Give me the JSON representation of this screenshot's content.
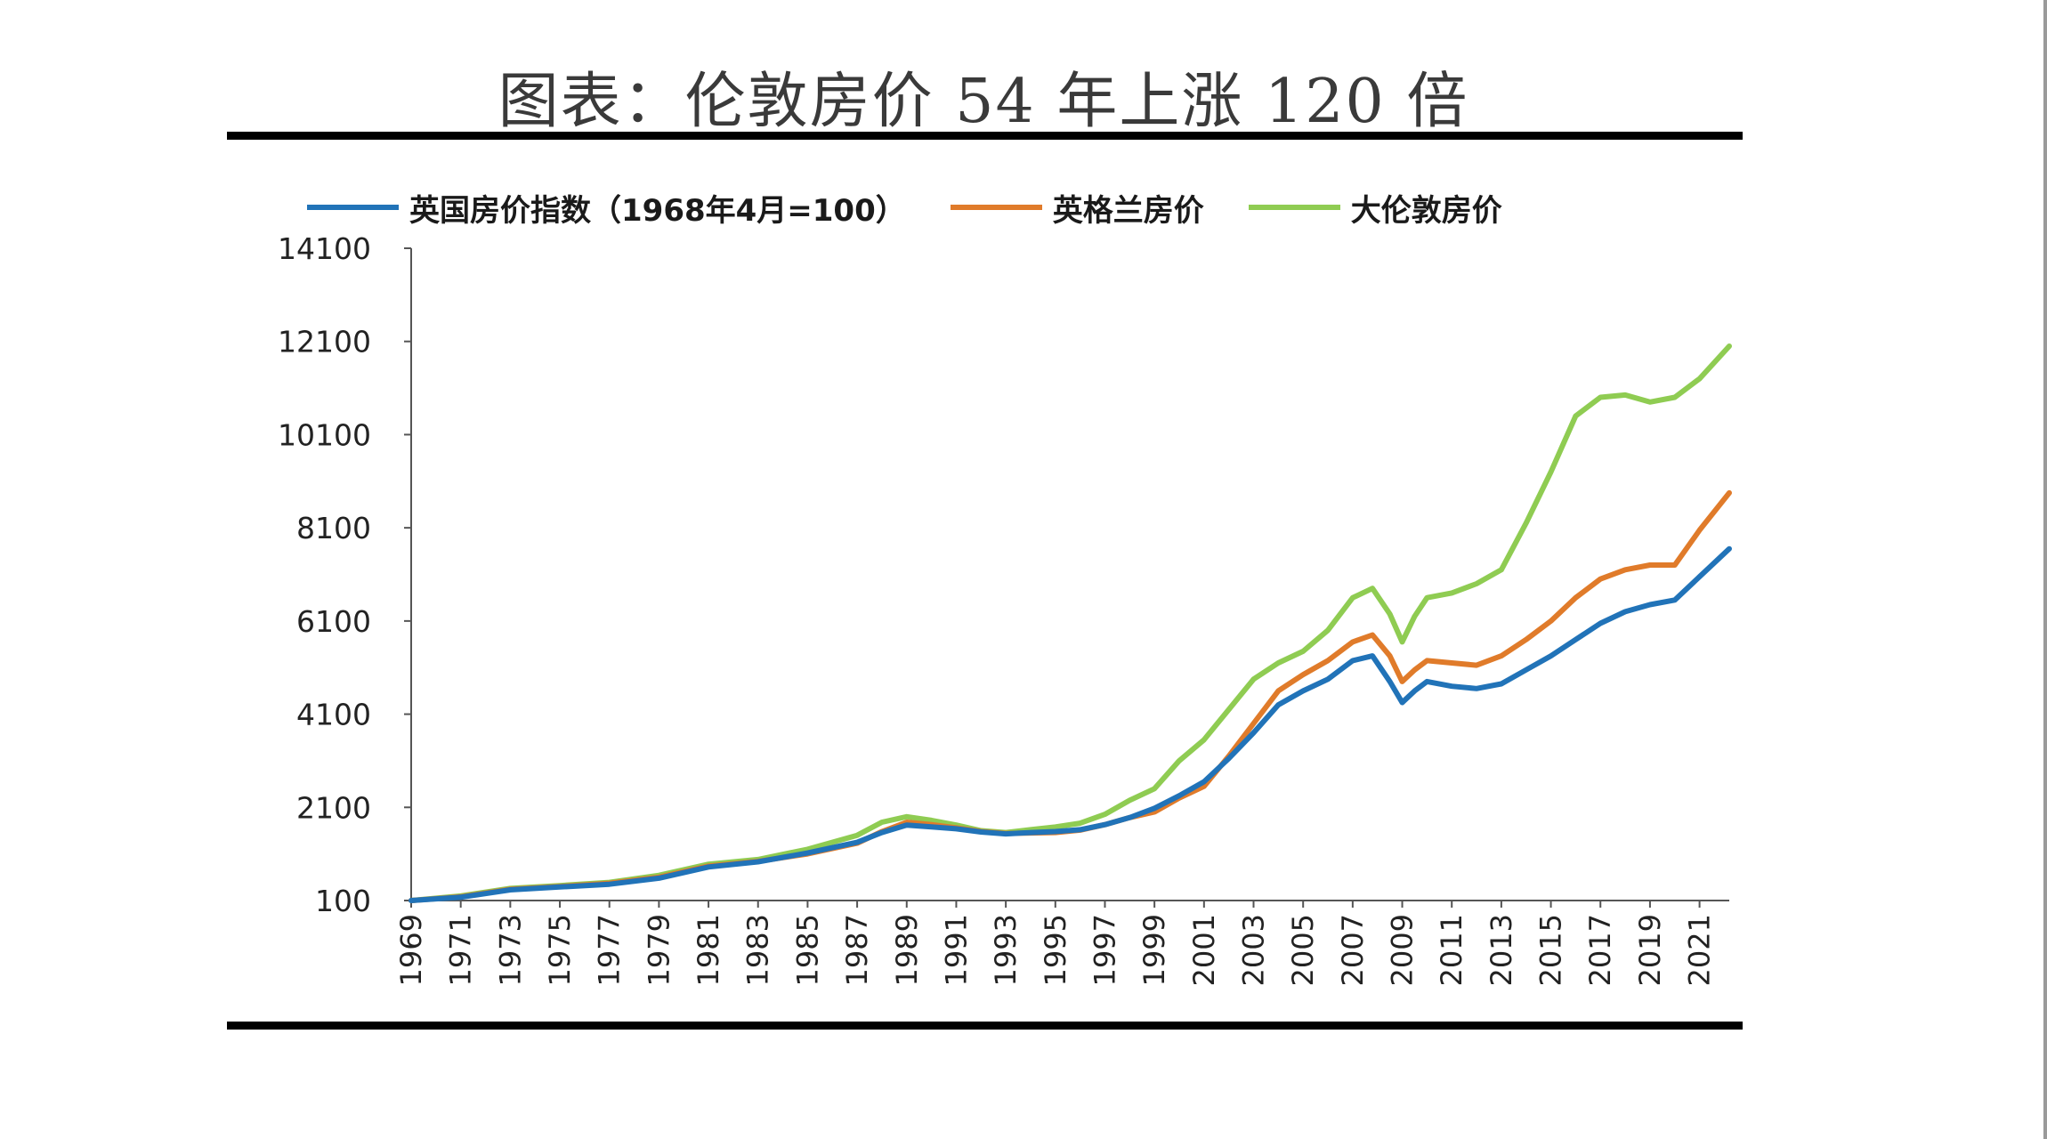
{
  "title": "图表：伦敦房价 54 年上涨 120 倍",
  "chart_data": {
    "type": "line",
    "title": "图表：伦敦房价 54 年上涨 120 倍",
    "xlabel": "",
    "ylabel": "",
    "xlim": [
      1969,
      2022.2
    ],
    "ylim": [
      100,
      14100
    ],
    "y_ticks": [
      "100",
      "2100",
      "4100",
      "6100",
      "8100",
      "10100",
      "12100",
      "14100"
    ],
    "x_ticks": [
      "1969",
      "1971",
      "1973",
      "1975",
      "1977",
      "1979",
      "1981",
      "1983",
      "1985",
      "1987",
      "1989",
      "1991",
      "1993",
      "1995",
      "1997",
      "1999",
      "2001",
      "2003",
      "2005",
      "2007",
      "2009",
      "2011",
      "2013",
      "2015",
      "2017",
      "2019",
      "2021"
    ],
    "grid": false,
    "legend": "top",
    "series": [
      {
        "name": "英国房价指数（1968年4月=100）",
        "color": "#2173b8",
        "points": [
          [
            1969,
            100
          ],
          [
            1971,
            170
          ],
          [
            1973,
            330
          ],
          [
            1975,
            390
          ],
          [
            1977,
            450
          ],
          [
            1979,
            580
          ],
          [
            1981,
            820
          ],
          [
            1983,
            930
          ],
          [
            1985,
            1120
          ],
          [
            1987,
            1350
          ],
          [
            1988,
            1560
          ],
          [
            1989,
            1720
          ],
          [
            1990,
            1680
          ],
          [
            1991,
            1640
          ],
          [
            1992,
            1570
          ],
          [
            1993,
            1530
          ],
          [
            1994,
            1560
          ],
          [
            1995,
            1580
          ],
          [
            1996,
            1620
          ],
          [
            1997,
            1730
          ],
          [
            1998,
            1880
          ],
          [
            1999,
            2080
          ],
          [
            2000,
            2350
          ],
          [
            2001,
            2650
          ],
          [
            2002,
            3150
          ],
          [
            2003,
            3700
          ],
          [
            2004,
            4300
          ],
          [
            2005,
            4600
          ],
          [
            2006,
            4850
          ],
          [
            2007,
            5250
          ],
          [
            2007.8,
            5350
          ],
          [
            2008.5,
            4800
          ],
          [
            2009,
            4350
          ],
          [
            2009.5,
            4600
          ],
          [
            2010,
            4800
          ],
          [
            2011,
            4700
          ],
          [
            2012,
            4650
          ],
          [
            2013,
            4750
          ],
          [
            2014,
            5050
          ],
          [
            2015,
            5350
          ],
          [
            2016,
            5700
          ],
          [
            2017,
            6050
          ],
          [
            2018,
            6300
          ],
          [
            2019,
            6450
          ],
          [
            2020,
            6550
          ],
          [
            2021,
            7050
          ],
          [
            2022.2,
            7650
          ]
        ]
      },
      {
        "name": "英格兰房价",
        "color": "#e07b2a",
        "points": [
          [
            1969,
            100
          ],
          [
            1971,
            180
          ],
          [
            1973,
            340
          ],
          [
            1975,
            400
          ],
          [
            1977,
            470
          ],
          [
            1979,
            600
          ],
          [
            1981,
            840
          ],
          [
            1983,
            940
          ],
          [
            1985,
            1100
          ],
          [
            1987,
            1330
          ],
          [
            1988,
            1580
          ],
          [
            1989,
            1780
          ],
          [
            1990,
            1730
          ],
          [
            1991,
            1660
          ],
          [
            1992,
            1580
          ],
          [
            1993,
            1540
          ],
          [
            1994,
            1550
          ],
          [
            1995,
            1560
          ],
          [
            1996,
            1610
          ],
          [
            1997,
            1730
          ],
          [
            1998,
            1880
          ],
          [
            1999,
            2000
          ],
          [
            2000,
            2300
          ],
          [
            2001,
            2550
          ],
          [
            2002,
            3200
          ],
          [
            2003,
            3900
          ],
          [
            2004,
            4600
          ],
          [
            2005,
            4950
          ],
          [
            2006,
            5250
          ],
          [
            2007,
            5650
          ],
          [
            2007.8,
            5800
          ],
          [
            2008.5,
            5350
          ],
          [
            2009,
            4800
          ],
          [
            2009.5,
            5050
          ],
          [
            2010,
            5250
          ],
          [
            2011,
            5200
          ],
          [
            2012,
            5150
          ],
          [
            2013,
            5350
          ],
          [
            2014,
            5700
          ],
          [
            2015,
            6100
          ],
          [
            2016,
            6600
          ],
          [
            2017,
            7000
          ],
          [
            2018,
            7200
          ],
          [
            2019,
            7300
          ],
          [
            2020,
            7300
          ],
          [
            2021,
            8050
          ],
          [
            2022.2,
            8850
          ]
        ]
      },
      {
        "name": "大伦敦房价",
        "color": "#8fcc52",
        "points": [
          [
            1969,
            100
          ],
          [
            1971,
            200
          ],
          [
            1973,
            360
          ],
          [
            1975,
            420
          ],
          [
            1977,
            490
          ],
          [
            1979,
            640
          ],
          [
            1981,
            880
          ],
          [
            1983,
            980
          ],
          [
            1985,
            1200
          ],
          [
            1987,
            1500
          ],
          [
            1988,
            1780
          ],
          [
            1989,
            1900
          ],
          [
            1990,
            1820
          ],
          [
            1991,
            1720
          ],
          [
            1992,
            1600
          ],
          [
            1993,
            1560
          ],
          [
            1994,
            1620
          ],
          [
            1995,
            1680
          ],
          [
            1996,
            1760
          ],
          [
            1997,
            1950
          ],
          [
            1998,
            2250
          ],
          [
            1999,
            2500
          ],
          [
            2000,
            3100
          ],
          [
            2001,
            3550
          ],
          [
            2002,
            4200
          ],
          [
            2003,
            4850
          ],
          [
            2004,
            5200
          ],
          [
            2005,
            5450
          ],
          [
            2006,
            5900
          ],
          [
            2007,
            6600
          ],
          [
            2007.8,
            6800
          ],
          [
            2008.5,
            6250
          ],
          [
            2009,
            5650
          ],
          [
            2009.5,
            6200
          ],
          [
            2010,
            6600
          ],
          [
            2011,
            6700
          ],
          [
            2012,
            6900
          ],
          [
            2013,
            7200
          ],
          [
            2014,
            8200
          ],
          [
            2015,
            9300
          ],
          [
            2016,
            10500
          ],
          [
            2017,
            10900
          ],
          [
            2018,
            10950
          ],
          [
            2019,
            10800
          ],
          [
            2020,
            10900
          ],
          [
            2021,
            11300
          ],
          [
            2022.2,
            12000
          ]
        ]
      }
    ]
  }
}
